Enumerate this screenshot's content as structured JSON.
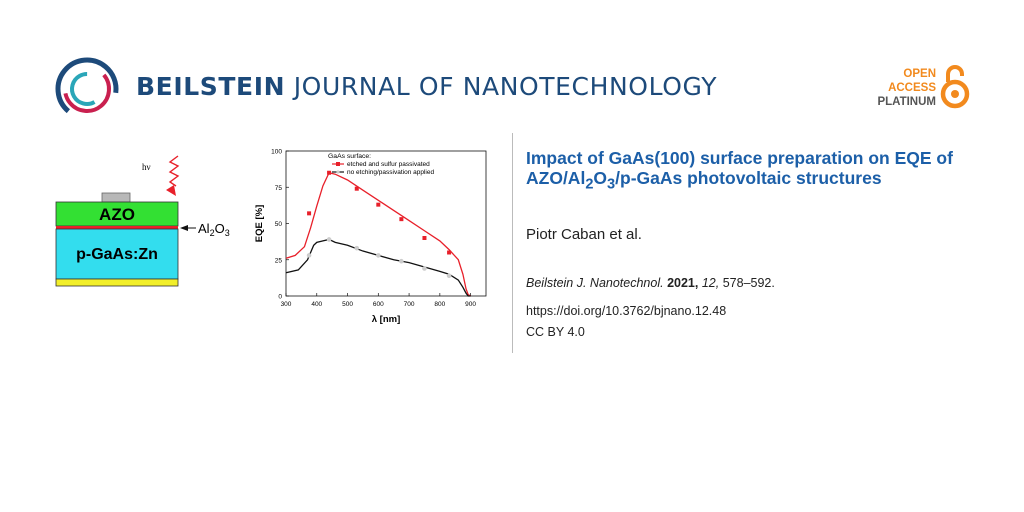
{
  "header": {
    "journal_bold": "BEILSTEIN",
    "journal_light": "JOURNAL OF NANOTECHNOLOGY",
    "open_access": [
      "OPEN",
      "ACCESS",
      "PLATINUM"
    ]
  },
  "colors": {
    "brand_blue": "#1d4a7a",
    "title_blue": "#1c5fa8",
    "oa_orange": "#f28a1e",
    "azo_green": "#33e033",
    "gaas_cyan": "#33ddee",
    "contact_yellow": "#f2ef2a",
    "series_red": "#e8202a",
    "series_black": "#111111"
  },
  "schematic": {
    "photon_label": "hν",
    "azo_label": "AZO",
    "al2o3_label": "Al",
    "al2o3_sub1": "2",
    "al2o3_mid": "O",
    "al2o3_sub2": "3",
    "gaas_label": "p-GaAs:Zn"
  },
  "chart_data": {
    "type": "line",
    "xlabel": "λ [nm]",
    "ylabel": "EQE [%]",
    "xlim": [
      300,
      950
    ],
    "ylim": [
      0,
      100
    ],
    "x_ticks": [
      300,
      400,
      500,
      600,
      700,
      800,
      900
    ],
    "y_ticks": [
      0,
      25,
      50,
      75,
      100
    ],
    "legend_title": "GaAs surface:",
    "legend_position": "top-right",
    "series": [
      {
        "name": "etched and sulfur passivated",
        "color": "#e8202a",
        "marker": "square",
        "x": [
          300,
          330,
          360,
          380,
          400,
          420,
          440,
          460,
          500,
          550,
          600,
          650,
          700,
          750,
          800,
          830,
          860,
          875,
          885,
          892,
          900
        ],
        "y": [
          26,
          28,
          34,
          47,
          62,
          76,
          85,
          84,
          80,
          73,
          66,
          59,
          52,
          45,
          38,
          32,
          25,
          15,
          5,
          1,
          0
        ],
        "markers_x": [
          375,
          440,
          530,
          600,
          675,
          750,
          830
        ],
        "markers_y": [
          57,
          85,
          74,
          63,
          53,
          40,
          30
        ]
      },
      {
        "name": "no etching/passivation applied",
        "color": "#111111",
        "marker": "circle",
        "x": [
          300,
          340,
          370,
          390,
          400,
          420,
          440,
          460,
          500,
          550,
          600,
          650,
          700,
          750,
          800,
          830,
          860,
          875,
          885,
          892,
          900
        ],
        "y": [
          16,
          18,
          25,
          35,
          37,
          38,
          39,
          37,
          35,
          31,
          28,
          25,
          23,
          20,
          17,
          15,
          11,
          6,
          2,
          0,
          0
        ],
        "markers_x": [
          375,
          440,
          530,
          600,
          675,
          750,
          830
        ],
        "markers_y": [
          28,
          39,
          33,
          28,
          24,
          19,
          14
        ]
      }
    ]
  },
  "article": {
    "title_part1": "Impact of GaAs(100) surface preparation on EQE of AZO/Al",
    "title_sub1": "2",
    "title_part2": "O",
    "title_sub2": "3",
    "title_part3": "/p-GaAs photovoltaic structures",
    "authors": "Piotr Caban et al.",
    "citation_journal": "Beilstein J. Nanotechnol.",
    "citation_year": "2021,",
    "citation_volume": "12,",
    "citation_pages": "578–592.",
    "doi": "https://doi.org/10.3762/bjnano.12.48",
    "license": "CC BY 4.0"
  }
}
